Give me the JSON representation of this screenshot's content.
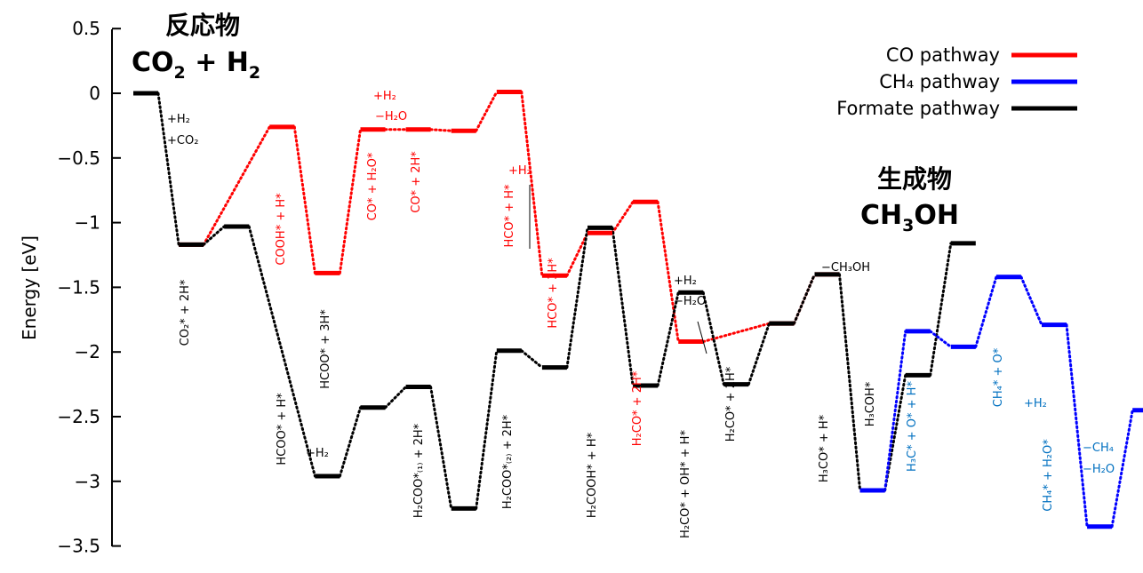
{
  "colors": {
    "co": "#ff0000",
    "ch4": "#0000ff",
    "formate": "#000000",
    "ch4_text": "#0070c0"
  },
  "reactant": {
    "title": "反応物",
    "formula": "CO",
    "sub": "2",
    "plus": " + H",
    "sub2": "2"
  },
  "product": {
    "title": "生成物",
    "formula": "CH",
    "sub": "3",
    "rest": "OH"
  },
  "chart_data": {
    "type": "line",
    "ylabel": "Energy [eV]",
    "ylim": [
      -3.5,
      0.5
    ],
    "yticks": [
      "0.5",
      "0",
      "−0.5",
      "−1",
      "−1.5",
      "−2",
      "−2.5",
      "−3",
      "−3.5"
    ],
    "legend": [
      {
        "name": "CO pathway",
        "color": "#ff0000"
      },
      {
        "name": "CH₄ pathway",
        "color": "#0000ff"
      },
      {
        "name": "Formate pathway",
        "color": "#000000"
      }
    ],
    "series": [
      {
        "name": "CO pathway",
        "color": "#ff0000",
        "levels": [
          {
            "x": 1,
            "y": -1.17
          },
          {
            "x": 3,
            "y": -0.26
          },
          {
            "x": 4,
            "y": -1.39
          },
          {
            "x": 5,
            "y": -0.28
          },
          {
            "x": 6,
            "y": -0.28
          },
          {
            "x": 7,
            "y": -0.29
          },
          {
            "x": 8,
            "y": 0.01
          },
          {
            "x": 9,
            "y": -1.41
          },
          {
            "x": 10,
            "y": -1.08
          },
          {
            "x": 11,
            "y": -0.84
          },
          {
            "x": 12,
            "y": -1.92
          },
          {
            "x": 14,
            "y": -1.78
          },
          {
            "x": 15,
            "y": -1.4
          }
        ]
      },
      {
        "name": "Formate pathway",
        "color": "#000000",
        "levels": [
          {
            "x": 0,
            "y": 0.0
          },
          {
            "x": 1,
            "y": -1.17
          },
          {
            "x": 2,
            "y": -1.03
          },
          {
            "x": 4,
            "y": -2.96
          },
          {
            "x": 5,
            "y": -2.43
          },
          {
            "x": 6,
            "y": -2.27
          },
          {
            "x": 7,
            "y": -3.21
          },
          {
            "x": 8,
            "y": -1.99
          },
          {
            "x": 9,
            "y": -2.12
          },
          {
            "x": 10,
            "y": -1.04
          },
          {
            "x": 11,
            "y": -2.26
          },
          {
            "x": 12,
            "y": -1.54
          },
          {
            "x": 13,
            "y": -2.25
          },
          {
            "x": 14,
            "y": -1.78
          },
          {
            "x": 15,
            "y": -1.4
          },
          {
            "x": 16,
            "y": -3.07
          },
          {
            "x": 17,
            "y": -2.18
          },
          {
            "x": 18,
            "y": -1.16
          }
        ]
      },
      {
        "name": "CH4 pathway",
        "color": "#0000ff",
        "levels": [
          {
            "x": 16,
            "y": -3.07
          },
          {
            "x": 17,
            "y": -1.84
          },
          {
            "x": 18,
            "y": -1.96
          },
          {
            "x": 19,
            "y": -1.42
          },
          {
            "x": 20,
            "y": -1.79
          },
          {
            "x": 21,
            "y": -3.35
          },
          {
            "x": 22,
            "y": -2.45
          }
        ]
      }
    ],
    "state_labels": [
      {
        "text": "CO₂* + 2H*",
        "color": "#000000"
      },
      {
        "text": "COOH* + H*",
        "color": "#ff0000"
      },
      {
        "text": "HCOO* + H*",
        "color": "#000000"
      },
      {
        "text": "HCOO* + 3H*",
        "color": "#000000"
      },
      {
        "text": "CO* + H₂O*",
        "color": "#ff0000"
      },
      {
        "text": "CO* + 2H*",
        "color": "#ff0000"
      },
      {
        "text": "H₂COO*₍₁₎ + 2H*",
        "color": "#000000"
      },
      {
        "text": "H₂COO*₍₂₎ + 2H*",
        "color": "#000000"
      },
      {
        "text": "HCO* + H*",
        "color": "#ff0000"
      },
      {
        "text": "HCO* + 3H*",
        "color": "#ff0000"
      },
      {
        "text": "H₂COOH* + H*",
        "color": "#000000"
      },
      {
        "text": "H₂CO* + 2H*",
        "color": "#ff0000"
      },
      {
        "text": "H₂CO* + OH* + H*",
        "color": "#000000"
      },
      {
        "text": "H₂CO* + 2H*",
        "color": "#000000"
      },
      {
        "text": "H₃CO* + H*",
        "color": "#000000"
      },
      {
        "text": "H₃COH*",
        "color": "#000000"
      },
      {
        "text": "H₃C* + O* + H*",
        "color": "#0070c0"
      },
      {
        "text": "CH₄* + O*",
        "color": "#0070c0"
      },
      {
        "text": "CH₄* + H₂O*",
        "color": "#0070c0"
      }
    ],
    "annotations": [
      {
        "text": "+H₂",
        "color": "#000000"
      },
      {
        "text": "+CO₂",
        "color": "#000000"
      },
      {
        "text": "+H₂",
        "color": "#ff0000"
      },
      {
        "text": "−H₂O",
        "color": "#ff0000"
      },
      {
        "text": "+H₂",
        "color": "#ff0000"
      },
      {
        "text": "+H₂",
        "color": "#000000"
      },
      {
        "text": "+H₂",
        "color": "#000000"
      },
      {
        "text": "−H₂O",
        "color": "#000000"
      },
      {
        "text": "−CH₃OH",
        "color": "#000000"
      },
      {
        "text": "+H₂",
        "color": "#0070c0"
      },
      {
        "text": "−CH₄",
        "color": "#0070c0"
      },
      {
        "text": "−H₂O",
        "color": "#0070c0"
      }
    ]
  }
}
